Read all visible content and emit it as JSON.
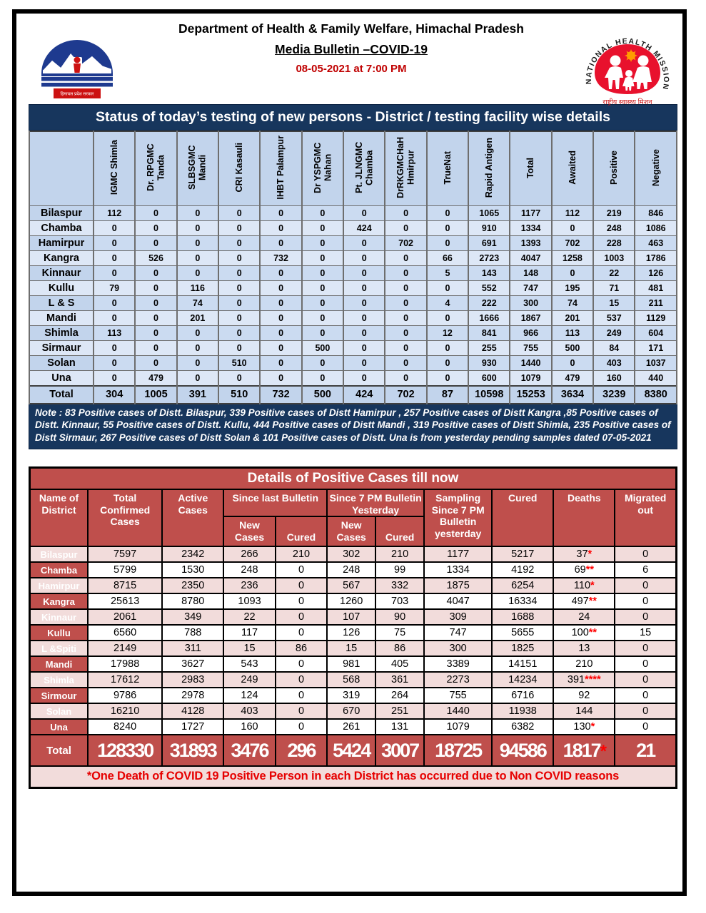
{
  "header": {
    "department": "Department of Health & Family Welfare, Himachal Pradesh",
    "bulletin": "Media Bulletin –COVID-19",
    "datetime": "08-05-2021 at 7:00 PM",
    "hp_logo_caption": "हिमाचल प्रदेश सरकार",
    "nhm_logo_text": "NATIONAL HEALTH MISSION",
    "nhm_logo_caption": "राष्ट्रीय स्वास्थ्य मिशन"
  },
  "colors": {
    "navy": "#17365d",
    "table1_header_blue": "#c2d4ec",
    "table1_row_blue": "#cbdbf1",
    "table1_row_light": "#dde7f6",
    "table2_red": "#bf4f4c",
    "table2_pink": "#f2dcdb",
    "date_red": "#c00000",
    "asterisk_red": "#ff0000"
  },
  "testing_table": {
    "title": "Status of today’s testing of new persons - District / testing facility wise details",
    "columns": [
      "IGMC Shimla",
      "Dr. RPGMC Tanda",
      "SLBSGMC Mandi",
      "CRI Kasauli",
      "IHBT Palampur",
      "Dr YSPGMC Nahan",
      "Pt. JLNGMC Chamba",
      "DrRKGMCHaH Hmirpur",
      "TrueNat",
      "Rapid Antigen",
      "Total",
      "Awaited",
      "Positive",
      "Negative"
    ],
    "rows": [
      {
        "district": "Bilaspur",
        "values": [
          "112",
          "0",
          "0",
          "0",
          "0",
          "0",
          "0",
          "0",
          "0",
          "1065",
          "1177",
          "112",
          "219",
          "846"
        ]
      },
      {
        "district": "Chamba",
        "values": [
          "0",
          "0",
          "0",
          "0",
          "0",
          "0",
          "424",
          "0",
          "0",
          "910",
          "1334",
          "0",
          "248",
          "1086"
        ]
      },
      {
        "district": "Hamirpur",
        "values": [
          "0",
          "0",
          "0",
          "0",
          "0",
          "0",
          "0",
          "702",
          "0",
          "691",
          "1393",
          "702",
          "228",
          "463"
        ]
      },
      {
        "district": "Kangra",
        "values": [
          "0",
          "526",
          "0",
          "0",
          "732",
          "0",
          "0",
          "0",
          "66",
          "2723",
          "4047",
          "1258",
          "1003",
          "1786"
        ]
      },
      {
        "district": "Kinnaur",
        "values": [
          "0",
          "0",
          "0",
          "0",
          "0",
          "0",
          "0",
          "0",
          "5",
          "143",
          "148",
          "0",
          "22",
          "126"
        ]
      },
      {
        "district": "Kullu",
        "values": [
          "79",
          "0",
          "116",
          "0",
          "0",
          "0",
          "0",
          "0",
          "0",
          "552",
          "747",
          "195",
          "71",
          "481"
        ]
      },
      {
        "district": "L & S",
        "values": [
          "0",
          "0",
          "74",
          "0",
          "0",
          "0",
          "0",
          "0",
          "4",
          "222",
          "300",
          "74",
          "15",
          "211"
        ]
      },
      {
        "district": "Mandi",
        "values": [
          "0",
          "0",
          "201",
          "0",
          "0",
          "0",
          "0",
          "0",
          "0",
          "1666",
          "1867",
          "201",
          "537",
          "1129"
        ]
      },
      {
        "district": "Shimla",
        "values": [
          "113",
          "0",
          "0",
          "0",
          "0",
          "0",
          "0",
          "0",
          "12",
          "841",
          "966",
          "113",
          "249",
          "604"
        ]
      },
      {
        "district": "Sirmaur",
        "values": [
          "0",
          "0",
          "0",
          "0",
          "0",
          "500",
          "0",
          "0",
          "0",
          "255",
          "755",
          "500",
          "84",
          "171"
        ]
      },
      {
        "district": "Solan",
        "values": [
          "0",
          "0",
          "0",
          "510",
          "0",
          "0",
          "0",
          "0",
          "0",
          "930",
          "1440",
          "0",
          "403",
          "1037"
        ]
      },
      {
        "district": "Una",
        "values": [
          "0",
          "479",
          "0",
          "0",
          "0",
          "0",
          "0",
          "0",
          "0",
          "600",
          "1079",
          "479",
          "160",
          "440"
        ]
      }
    ],
    "total_row": {
      "district": "Total",
      "values": [
        "304",
        "1005",
        "391",
        "510",
        "732",
        "500",
        "424",
        "702",
        "87",
        "10598",
        "15253",
        "3634",
        "3239",
        "8380"
      ]
    },
    "note": "Note :  83 Positive cases of Distt. Bilaspur,  339 Positive cases of Distt Hamirpur , 257 Positive cases of Distt Kangra ,85 Positive cases of Distt. Kinnaur, 55 Positive cases of Distt. Kullu, 444 Positive cases of Distt Mandi , 319 Positive cases of Distt  Shimla, 235 Positive cases of Distt Sirmaur, 267 Positive cases of Distt Solan & 101 Positive cases of Distt. Una is from yesterday pending samples dated  07-05-2021"
  },
  "positive_table": {
    "title": "Details of Positive Cases till now",
    "headers": {
      "name": "Name of District",
      "total_confirmed": "Total Confirmed Cases",
      "active": "Active Cases",
      "since_last_bulletin": "Since last Bulletin",
      "since_7pm_yesterday": "Since 7 PM Bulletin Yesterday",
      "new_cases": "New Cases",
      "cured_sub": "Cured",
      "sampling": "Sampling Since 7 PM Bulletin yesterday",
      "cured": "Cured",
      "deaths": "Deaths",
      "migrated": "Migrated out"
    },
    "rows": [
      {
        "district": "Bilaspur",
        "cells": [
          "7597",
          "2342",
          "266",
          "210",
          "302",
          "210",
          "1177",
          "5217"
        ],
        "deaths": "37",
        "deaths_stars": "*",
        "migrated": "0"
      },
      {
        "district": "Chamba",
        "cells": [
          "5799",
          "1530",
          "248",
          "0",
          "248",
          "99",
          "1334",
          "4192"
        ],
        "deaths": "69",
        "deaths_stars": "**",
        "migrated": "6"
      },
      {
        "district": "Hamirpur",
        "cells": [
          "8715",
          "2350",
          "236",
          "0",
          "567",
          "332",
          "1875",
          "6254"
        ],
        "deaths": "110",
        "deaths_stars": "*",
        "migrated": "0"
      },
      {
        "district": "Kangra",
        "cells": [
          "25613",
          "8780",
          "1093",
          "0",
          "1260",
          "703",
          "4047",
          "16334"
        ],
        "deaths": "497",
        "deaths_stars": "**",
        "migrated": "0"
      },
      {
        "district": "Kinnaur",
        "cells": [
          "2061",
          "349",
          "22",
          "0",
          "107",
          "90",
          "309",
          "1688"
        ],
        "deaths": "24",
        "deaths_stars": "",
        "migrated": "0"
      },
      {
        "district": "Kullu",
        "cells": [
          "6560",
          "788",
          "117",
          "0",
          "126",
          "75",
          "747",
          "5655"
        ],
        "deaths": "100",
        "deaths_stars": "**",
        "migrated": "15"
      },
      {
        "district": "L &Spiti",
        "cells": [
          "2149",
          "311",
          "15",
          "86",
          "15",
          "86",
          "300",
          "1825"
        ],
        "deaths": "13",
        "deaths_stars": "",
        "migrated": "0"
      },
      {
        "district": "Mandi",
        "cells": [
          "17988",
          "3627",
          "543",
          "0",
          "981",
          "405",
          "3389",
          "14151"
        ],
        "deaths": "210",
        "deaths_stars": "",
        "migrated": "0"
      },
      {
        "district": "Shimla",
        "cells": [
          "17612",
          "2983",
          "249",
          "0",
          "568",
          "361",
          "2273",
          "14234"
        ],
        "deaths": "391",
        "deaths_stars": "****",
        "migrated": "0"
      },
      {
        "district": "Sirmour",
        "cells": [
          "9786",
          "2978",
          "124",
          "0",
          "319",
          "264",
          "755",
          "6716"
        ],
        "deaths": "92",
        "deaths_stars": "",
        "migrated": "0"
      },
      {
        "district": "Solan",
        "cells": [
          "16210",
          "4128",
          "403",
          "0",
          "670",
          "251",
          "1440",
          "11938"
        ],
        "deaths": "144",
        "deaths_stars": "",
        "migrated": "0"
      },
      {
        "district": "Una",
        "cells": [
          "8240",
          "1727",
          "160",
          "0",
          "261",
          "131",
          "1079",
          "6382"
        ],
        "deaths": "130",
        "deaths_stars": "*",
        "migrated": "0"
      }
    ],
    "total_row": {
      "district": "Total",
      "cells": [
        "128330",
        "31893",
        "3476",
        "296",
        "5424",
        "3007",
        "18725",
        "94586"
      ],
      "deaths": "1817",
      "deaths_stars": "*",
      "migrated": "21"
    },
    "footnote": "*One Death of COVID 19 Positive Person in each District has occurred due to Non COVID reasons"
  }
}
